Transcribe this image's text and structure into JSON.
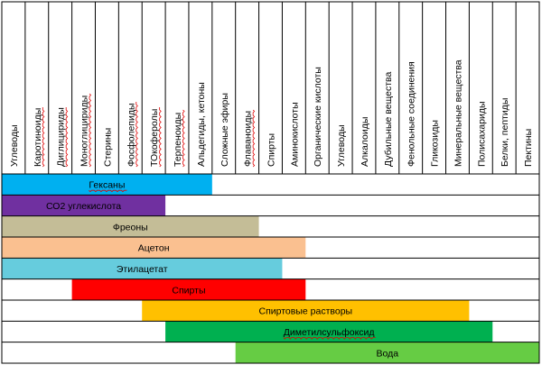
{
  "table": {
    "columns": [
      {
        "label": "Углеводы",
        "spell_underline": false
      },
      {
        "label": "Каротиноиды",
        "spell_underline": true
      },
      {
        "label": "Диглицириды",
        "spell_underline": true
      },
      {
        "label": "Моноглицириды",
        "spell_underline": true
      },
      {
        "label": "Стерины",
        "spell_underline": false
      },
      {
        "label": "Фосфолепиды",
        "spell_underline": true
      },
      {
        "label": "ТОкоферолы",
        "spell_underline": true
      },
      {
        "label": "Терпеноиды",
        "spell_underline": true
      },
      {
        "label": "Альдегиды, кетоны",
        "spell_underline": false
      },
      {
        "label": "Сложные эфиры",
        "spell_underline": false
      },
      {
        "label": "Флаваноиды",
        "spell_underline": true
      },
      {
        "label": "Спирты",
        "spell_underline": false
      },
      {
        "label": "Аминокислоты",
        "spell_underline": false
      },
      {
        "label": "Органические кислоты",
        "spell_underline": false
      },
      {
        "label": "Углеводы",
        "spell_underline": false
      },
      {
        "label": "Алкалоиды",
        "spell_underline": false
      },
      {
        "label": "Дубильные  вещества",
        "spell_underline": false
      },
      {
        "label": "Фенольные соединения",
        "spell_underline": false
      },
      {
        "label": "Гликозиды",
        "spell_underline": false
      },
      {
        "label": "Минеральные  вещества",
        "spell_underline": false
      },
      {
        "label": "Полисахариды",
        "spell_underline": false
      },
      {
        "label": "Белки, пептиды",
        "spell_underline": false
      },
      {
        "label": "Пектины",
        "spell_underline": false
      }
    ],
    "solvents": [
      {
        "label": "Гексаны",
        "start_col": 0,
        "end_col": 9,
        "color": "#00b0f0",
        "underline": true
      },
      {
        "label": "СО2 углекислота",
        "start_col": 0,
        "end_col": 7,
        "color": "#7030a0",
        "underline": false
      },
      {
        "label": "Фреоны",
        "start_col": 0,
        "end_col": 11,
        "color": "#c4bd97",
        "underline": false
      },
      {
        "label": "Ацетон",
        "start_col": 0,
        "end_col": 13,
        "color": "#fac090",
        "underline": false
      },
      {
        "label": "Этилацетат",
        "start_col": 0,
        "end_col": 12,
        "color": "#66ccdd",
        "underline": false
      },
      {
        "label": "Спирты",
        "start_col": 3,
        "end_col": 13,
        "color": "#ff0000",
        "underline": false
      },
      {
        "label": "Спиртовые растворы",
        "start_col": 6,
        "end_col": 20,
        "color": "#ffc000",
        "underline": false
      },
      {
        "label": "Диметилсульфоксид",
        "start_col": 7,
        "end_col": 21,
        "color": "#00b050",
        "underline": true
      },
      {
        "label": "Вода",
        "start_col": 10,
        "end_col": 23,
        "color": "#66cc44",
        "underline": false
      }
    ]
  }
}
